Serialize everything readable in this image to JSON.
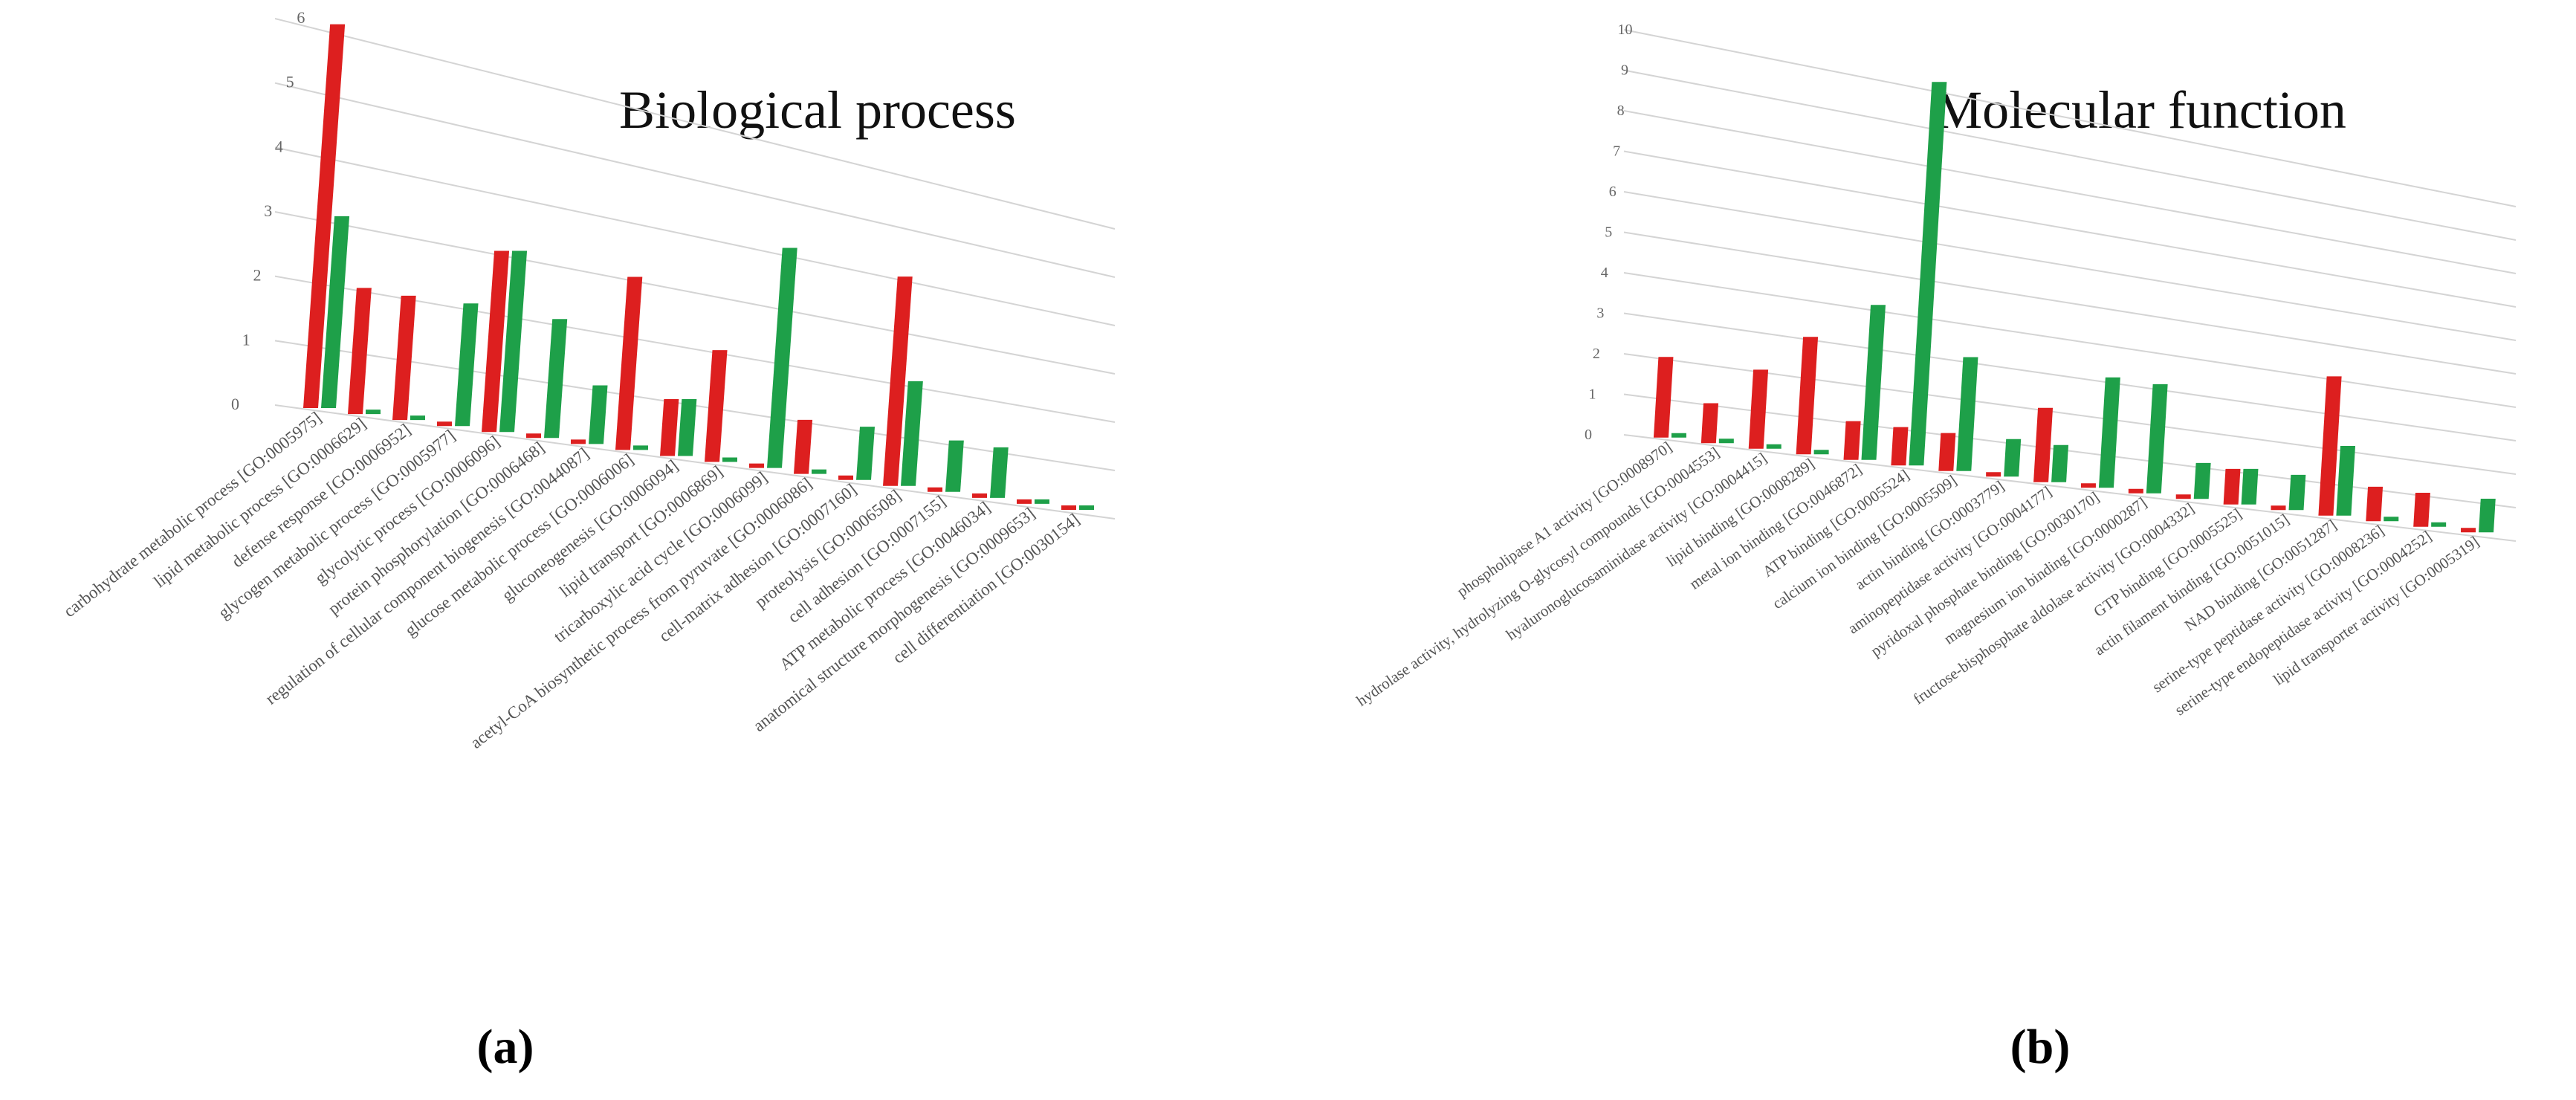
{
  "colors": {
    "series_a": "#dd1f1f",
    "series_b": "#1ea049",
    "grid": "#d4d4d4",
    "text": "#555555"
  },
  "chart_data": [
    {
      "type": "bar",
      "title": "Biological process",
      "panel_label": "(a)",
      "ylim": [
        0,
        6
      ],
      "yticks": [
        "0",
        "1",
        "2",
        "3",
        "4",
        "5",
        "6"
      ],
      "grid": true,
      "legend": "none",
      "categories": [
        "carbohydrate metabolic process [GO:0005975]",
        "lipid metabolic process [GO:0006629]",
        "defense response [GO:0006952]",
        "glycogen metabolic process [GO:0005977]",
        "glycolytic process [GO:0006096]",
        "protein phosphorylation [GO:0006468]",
        "regulation of cellular component biogenesis [GO:0044087]",
        "glucose metabolic process [GO:0006006]",
        "gluconeogenesis [GO:0006094]",
        "lipid transport [GO:0006869]",
        "tricarboxylic acid cycle [GO:0006099]",
        "acetyl-CoA biosynthetic process from pyruvate [GO:0006086]",
        "cell-matrix adhesion [GO:0007160]",
        "proteolysis [GO:0006508]",
        "cell adhesion [GO:0007155]",
        "ATP metabolic process [GO:0046034]",
        "anatomical structure morphogenesis [GO:0009653]",
        "cell differentiation [GO:0030154]"
      ],
      "series": [
        {
          "values": [
            6,
            2,
            2,
            0,
            3,
            0,
            0,
            3,
            1,
            2,
            0,
            1,
            0,
            4,
            0,
            0,
            0,
            0
          ]
        },
        {
          "values": [
            3,
            0,
            0,
            2,
            3,
            2,
            1,
            0,
            1,
            0,
            4,
            0,
            1,
            2,
            1,
            1,
            0,
            0
          ]
        }
      ]
    },
    {
      "type": "bar",
      "title": "Molecular function",
      "panel_label": "(b)",
      "ylim": [
        0,
        10
      ],
      "yticks": [
        "0",
        "1",
        "2",
        "3",
        "4",
        "5",
        "6",
        "7",
        "8",
        "9",
        "10"
      ],
      "grid": true,
      "legend": "none",
      "categories": [
        "phospholipase A1 activity [GO:0008970]",
        "hydrolase activity, hydrolyzing O-glycosyl compounds [GO:0004553]",
        "hyaluronoglucosaminidase activity [GO:0004415]",
        "lipid binding [GO:0008289]",
        "metal ion binding [GO:0046872]",
        "ATP binding [GO:0005524]",
        "calcium ion binding [GO:0005509]",
        "actin binding [GO:0003779]",
        "aminopeptidase activity [GO:0004177]",
        "pyridoxal phosphate binding [GO:0030170]",
        "magnesium ion binding [GO:0000287]",
        "fructose-bisphosphate aldolase activity [GO:0004332]",
        "GTP binding [GO:0005525]",
        "actin filament binding [GO:0051015]",
        "NAD binding [GO:0051287]",
        "serine-type peptidase activity [GO:0008236]",
        "serine-type endopeptidase activity [GO:0004252]",
        "lipid transporter activity [GO:0005319]"
      ],
      "series": [
        {
          "values": [
            2,
            1,
            2,
            3,
            1,
            1,
            1,
            0,
            2,
            0,
            0,
            0,
            1,
            0,
            4,
            1,
            1,
            0
          ]
        },
        {
          "values": [
            0,
            0,
            0,
            0,
            4,
            10,
            3,
            1,
            1,
            3,
            3,
            1,
            1,
            1,
            2,
            0,
            0,
            1
          ]
        }
      ]
    }
  ]
}
